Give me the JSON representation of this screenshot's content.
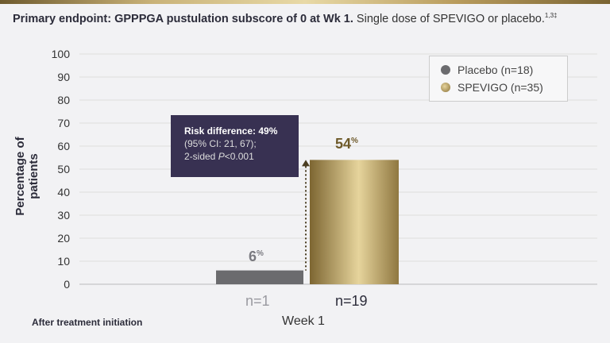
{
  "header": {
    "title_bold": "Primary endpoint: GPPPGA pustulation subscore of 0 at Wk 1.",
    "title_rest": "Single dose of SPEVIGO or placebo.",
    "title_sup": "1,3‡"
  },
  "colors": {
    "placebo": "#6b6b6e",
    "spevigo": "#b39a5e",
    "tooltip_bg": "#383152",
    "gold_text": "#6e5a2a"
  },
  "chart_data": {
    "type": "bar",
    "categories": [
      "Week 1"
    ],
    "series": [
      {
        "name": "Placebo (n=18)",
        "values": [
          6
        ],
        "data_label": "6",
        "n_label": "n=1"
      },
      {
        "name": "SPEVIGO (n=35)",
        "values": [
          54
        ],
        "data_label": "54",
        "n_label": "n=19"
      }
    ],
    "ylabel": "Percentage of patients",
    "xlabel": "Week 1",
    "ylim": [
      0,
      100
    ],
    "yticks": [
      "0",
      "10",
      "20",
      "30",
      "40",
      "50",
      "60",
      "70",
      "80",
      "90",
      "100"
    ],
    "grid": true,
    "legend": "top-right",
    "percent_sign": "%",
    "annotation": {
      "line1": "Risk difference: 49%",
      "line2": "(95% CI: 21, 67);",
      "line3_pre": "2-sided ",
      "line3_italic": "P",
      "line3_post": "<0.001"
    },
    "footer": "After treatment initiation"
  }
}
